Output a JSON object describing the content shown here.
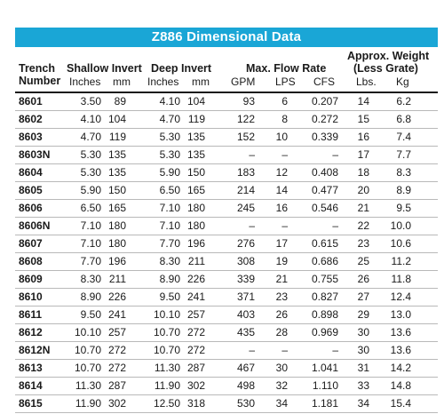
{
  "title": "Z886 Dimensional Data",
  "headers": {
    "trench": "Trench",
    "number": "Number",
    "shallow_invert": "Shallow Invert",
    "deep_invert": "Deep Invert",
    "max_flow_rate": "Max. Flow Rate",
    "approx_weight": "Approx. Weight",
    "less_grate": "(Less Grate)",
    "units": {
      "inches1": "Inches",
      "mm1": "mm",
      "inches2": "Inches",
      "mm2": "mm",
      "gpm": "GPM",
      "lps": "LPS",
      "cfs": "CFS",
      "lbs": "Lbs.",
      "kg": "Kg"
    }
  },
  "rows": [
    [
      "8601",
      "3.50",
      "89",
      "4.10",
      "104",
      "93",
      "6",
      "0.207",
      "14",
      "6.2"
    ],
    [
      "8602",
      "4.10",
      "104",
      "4.70",
      "119",
      "122",
      "8",
      "0.272",
      "15",
      "6.8"
    ],
    [
      "8603",
      "4.70",
      "119",
      "5.30",
      "135",
      "152",
      "10",
      "0.339",
      "16",
      "7.4"
    ],
    [
      "8603N",
      "5.30",
      "135",
      "5.30",
      "135",
      "–",
      "–",
      "–",
      "17",
      "7.7"
    ],
    [
      "8604",
      "5.30",
      "135",
      "5.90",
      "150",
      "183",
      "12",
      "0.408",
      "18",
      "8.3"
    ],
    [
      "8605",
      "5.90",
      "150",
      "6.50",
      "165",
      "214",
      "14",
      "0.477",
      "20",
      "8.9"
    ],
    [
      "8606",
      "6.50",
      "165",
      "7.10",
      "180",
      "245",
      "16",
      "0.546",
      "21",
      "9.5"
    ],
    [
      "8606N",
      "7.10",
      "180",
      "7.10",
      "180",
      "–",
      "–",
      "–",
      "22",
      "10.0"
    ],
    [
      "8607",
      "7.10",
      "180",
      "7.70",
      "196",
      "276",
      "17",
      "0.615",
      "23",
      "10.6"
    ],
    [
      "8608",
      "7.70",
      "196",
      "8.30",
      "211",
      "308",
      "19",
      "0.686",
      "25",
      "11.2"
    ],
    [
      "8609",
      "8.30",
      "211",
      "8.90",
      "226",
      "339",
      "21",
      "0.755",
      "26",
      "11.8"
    ],
    [
      "8610",
      "8.90",
      "226",
      "9.50",
      "241",
      "371",
      "23",
      "0.827",
      "27",
      "12.4"
    ],
    [
      "8611",
      "9.50",
      "241",
      "10.10",
      "257",
      "403",
      "26",
      "0.898",
      "29",
      "13.0"
    ],
    [
      "8612",
      "10.10",
      "257",
      "10.70",
      "272",
      "435",
      "28",
      "0.969",
      "30",
      "13.6"
    ],
    [
      "8612N",
      "10.70",
      "272",
      "10.70",
      "272",
      "–",
      "–",
      "–",
      "30",
      "13.6"
    ],
    [
      "8613",
      "10.70",
      "272",
      "11.30",
      "287",
      "467",
      "30",
      "1.041",
      "31",
      "14.2"
    ],
    [
      "8614",
      "11.30",
      "287",
      "11.90",
      "302",
      "498",
      "32",
      "1.110",
      "33",
      "14.8"
    ],
    [
      "8615",
      "11.90",
      "302",
      "12.50",
      "318",
      "530",
      "34",
      "1.181",
      "34",
      "15.4"
    ]
  ]
}
